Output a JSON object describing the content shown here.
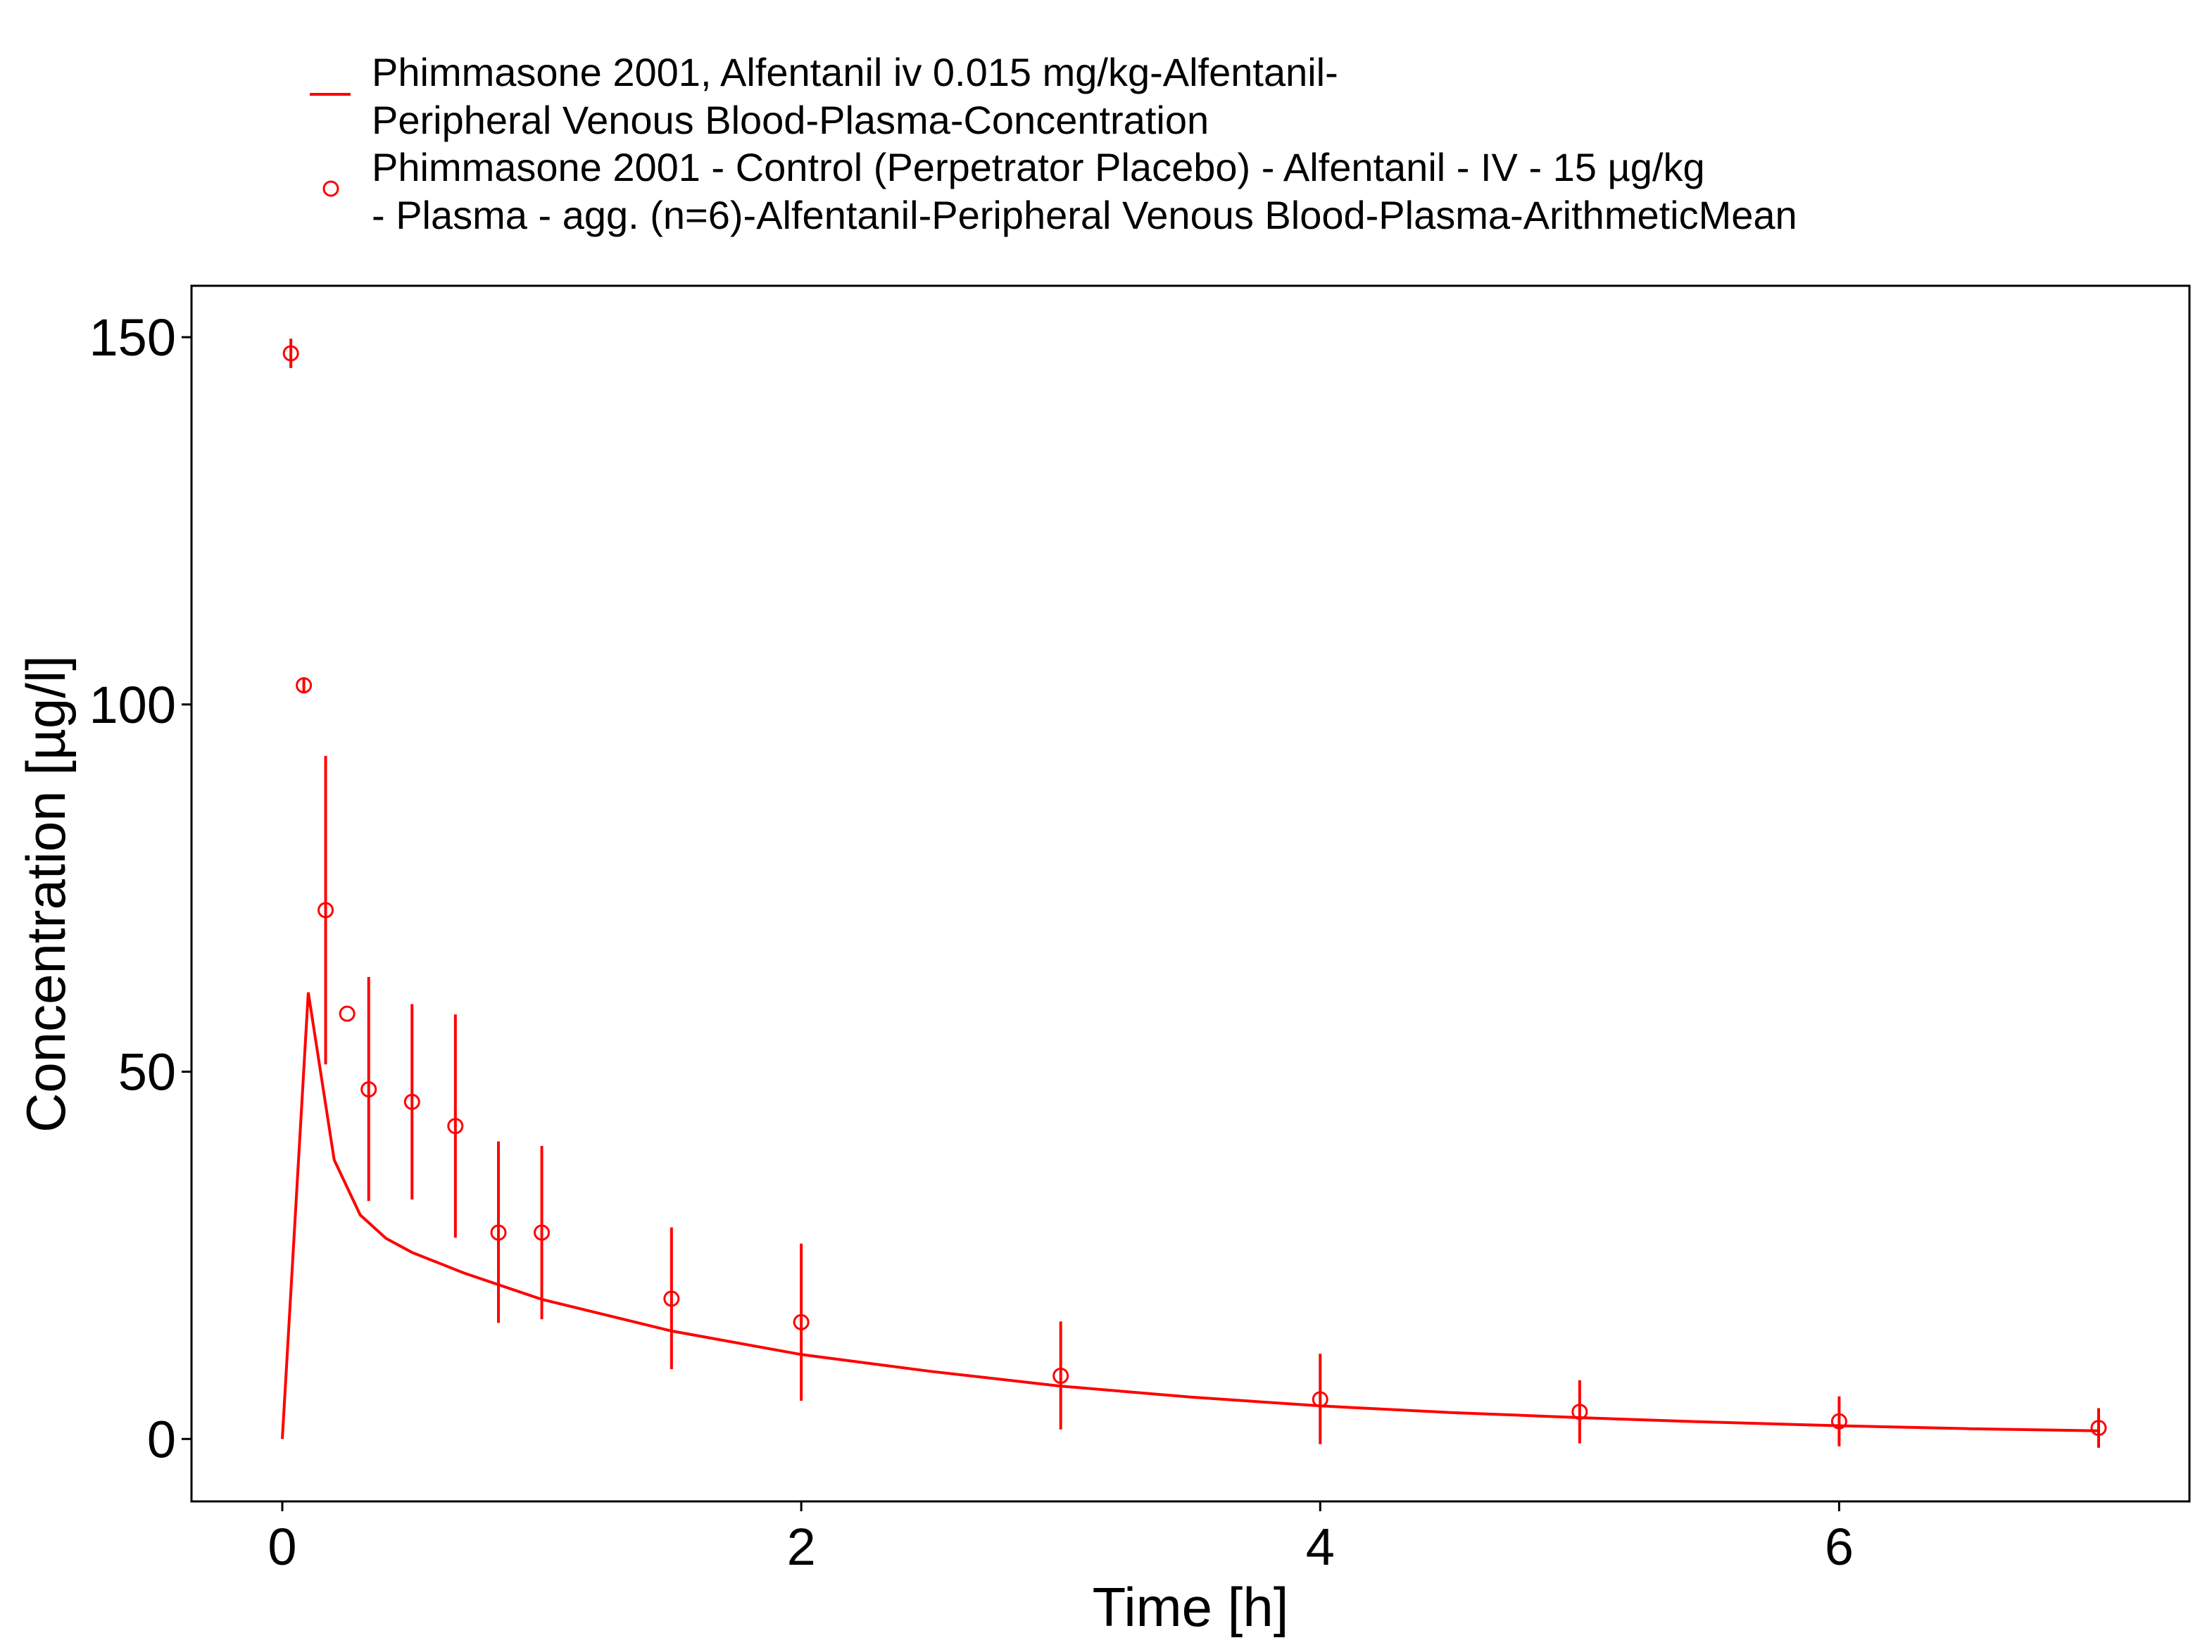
{
  "chart_data": {
    "type": "line",
    "xlabel": "Time [h]",
    "ylabel": "Concentration [µg/l]",
    "xlim": [
      -0.35,
      7.35
    ],
    "ylim": [
      -8.5,
      157
    ],
    "xticks": [
      0,
      2,
      4,
      6
    ],
    "yticks": [
      0,
      50,
      100,
      150
    ],
    "xtick_labels": [
      "0",
      "2",
      "4",
      "6"
    ],
    "ytick_labels": [
      "0",
      "50",
      "100",
      "150"
    ],
    "grid": false,
    "legend_position": "top",
    "color": "#ff0000",
    "series": [
      {
        "name": "Phimmasone 2001, Alfentanil iv 0.015 mg/kg-Alfentanil-Peripheral Venous Blood-Plasma-Concentration",
        "legend_lines": [
          "Phimmasone 2001, Alfentanil iv 0.015 mg/kg-Alfentanil-",
          "Peripheral Venous Blood-Plasma-Concentration"
        ],
        "kind": "line",
        "x": [
          0,
          0.1,
          0.2,
          0.3,
          0.4,
          0.5,
          0.7,
          1.0,
          1.5,
          2.0,
          2.5,
          3.0,
          3.5,
          4.0,
          4.5,
          5.0,
          5.5,
          6.0,
          6.5,
          7.0
        ],
        "y": [
          0,
          60.8,
          38.0,
          30.5,
          27.3,
          25.4,
          22.6,
          19.0,
          14.7,
          11.5,
          9.2,
          7.2,
          5.7,
          4.5,
          3.6,
          2.9,
          2.3,
          1.8,
          1.4,
          1.1
        ]
      },
      {
        "name": "Phimmasone 2001 - Control (Perpetrator Placebo) - Alfentanil - IV - 15 µg/kg - Plasma - agg. (n=6)-Alfentanil-Peripheral Venous Blood-Plasma-ArithmeticMean",
        "legend_lines": [
          "Phimmasone 2001 - Control (Perpetrator Placebo) - Alfentanil - IV - 15 µg/kg",
          "- Plasma - agg. (n=6)-Alfentanil-Peripheral Venous Blood-Plasma-ArithmeticMean"
        ],
        "kind": "scatter_errorbar",
        "x": [
          0.033,
          0.083,
          0.167,
          0.25,
          0.333,
          0.5,
          0.667,
          0.833,
          1.0,
          1.5,
          2.0,
          3.0,
          4.0,
          5.0,
          6.0,
          7.0
        ],
        "y": [
          147.8,
          102.6,
          72.0,
          57.9,
          47.6,
          45.9,
          42.6,
          28.1,
          28.1,
          19.1,
          15.9,
          8.6,
          5.4,
          3.7,
          2.4,
          1.5
        ],
        "ymin": [
          145.8,
          101.5,
          51.0,
          57.9,
          32.4,
          32.6,
          27.4,
          15.8,
          16.3,
          9.5,
          5.2,
          1.3,
          -0.7,
          -0.6,
          -1.0,
          -1.2
        ],
        "ymax": [
          149.8,
          103.7,
          93.0,
          57.9,
          62.9,
          59.2,
          57.8,
          40.5,
          39.9,
          28.8,
          26.6,
          16.0,
          11.6,
          8.0,
          5.8,
          4.2
        ]
      }
    ]
  }
}
